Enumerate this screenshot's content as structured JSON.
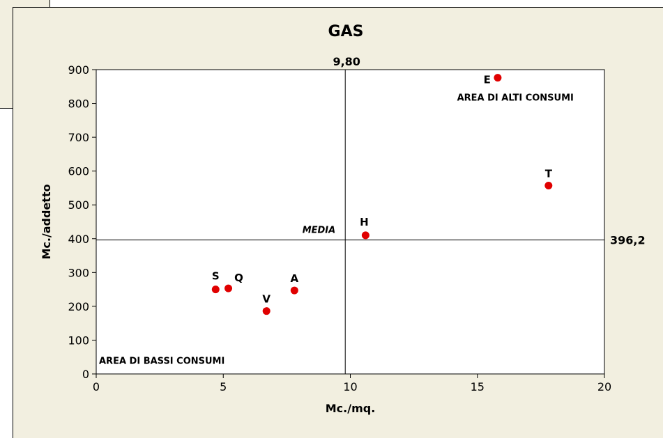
{
  "chart_data": {
    "type": "scatter",
    "title": "GAS",
    "xlabel": "Mc./mq.",
    "ylabel": "Mc./addetto",
    "xlim": [
      0,
      20
    ],
    "ylim": [
      0,
      900
    ],
    "x_ticks": [
      0,
      5,
      10,
      15,
      20
    ],
    "y_ticks": [
      0,
      100,
      200,
      300,
      400,
      500,
      600,
      700,
      800,
      900
    ],
    "point_color": "#e00000",
    "points": [
      {
        "label": "S",
        "x": 4.7,
        "y": 250
      },
      {
        "label": "Q",
        "x": 5.2,
        "y": 253
      },
      {
        "label": "V",
        "x": 6.7,
        "y": 186
      },
      {
        "label": "A",
        "x": 7.8,
        "y": 247
      },
      {
        "label": "H",
        "x": 10.6,
        "y": 410
      },
      {
        "label": "E",
        "x": 15.8,
        "y": 876
      },
      {
        "label": "T",
        "x": 17.8,
        "y": 557
      }
    ],
    "reference_lines": {
      "vertical": {
        "x": 9.8,
        "label": "9,80"
      },
      "horizontal": {
        "y": 396.2,
        "label": "396,2"
      }
    },
    "annotations": {
      "mean": "MEDIA",
      "high_area": "AREA DI ALTI CONSUMI",
      "low_area": "AREA DI BASSI CONSUMI"
    },
    "grid": false,
    "legend": "none"
  }
}
